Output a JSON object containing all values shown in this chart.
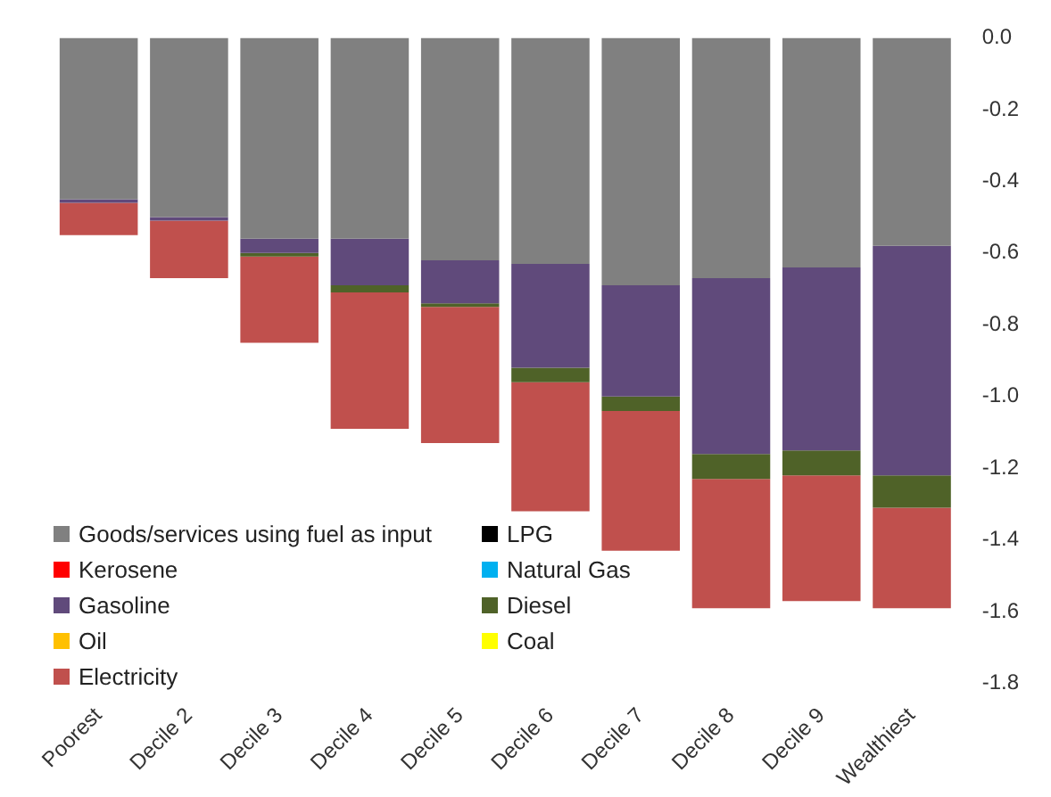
{
  "chart_data": {
    "type": "bar",
    "stacked": true,
    "legend": "bottom left",
    "categories": [
      "Poorest",
      "Decile 2",
      "Decile 3",
      "Decile 4",
      "Decile 5",
      "Decile 6",
      "Decile 7",
      "Decile 8",
      "Decile 9",
      "Wealthiest"
    ],
    "ylim": [
      -1.8,
      0
    ],
    "yticks": [
      {
        "value": 0,
        "label": "0.0"
      },
      {
        "value": -0.2,
        "label": "-0.2"
      },
      {
        "value": -0.4,
        "label": "-0.4"
      },
      {
        "value": -0.6,
        "label": "-0.6"
      },
      {
        "value": -0.8,
        "label": "-0.8"
      },
      {
        "value": -1.0,
        "label": "-1.0"
      },
      {
        "value": -1.2,
        "label": "-1.2"
      },
      {
        "value": -1.4,
        "label": "-1.4"
      },
      {
        "value": -1.6,
        "label": "-1.6"
      },
      {
        "value": -1.8,
        "label": "-1.8"
      }
    ],
    "series": [
      {
        "name": "Goods/services using fuel as input",
        "color": "#808080",
        "values": [
          -0.45,
          -0.5,
          -0.56,
          -0.56,
          -0.62,
          -0.63,
          -0.69,
          -0.67,
          -0.64,
          -0.58
        ]
      },
      {
        "name": "LPG",
        "color": "#000000",
        "values": [
          0,
          0,
          0,
          0,
          0,
          0,
          0,
          0,
          0,
          0
        ]
      },
      {
        "name": "Kerosene",
        "color": "#ff0000",
        "values": [
          0,
          0,
          0,
          0,
          0,
          0,
          0,
          0,
          0,
          0
        ]
      },
      {
        "name": "Natural Gas",
        "color": "#00b0f0",
        "values": [
          0,
          0,
          0,
          0,
          0,
          0,
          0,
          0,
          0,
          0
        ]
      },
      {
        "name": "Gasoline",
        "color": "#604a7b",
        "values": [
          -0.01,
          -0.01,
          -0.04,
          -0.13,
          -0.12,
          -0.29,
          -0.31,
          -0.49,
          -0.51,
          -0.64
        ]
      },
      {
        "name": "Diesel",
        "color": "#4f6228",
        "values": [
          0,
          0,
          -0.01,
          -0.02,
          -0.01,
          -0.04,
          -0.04,
          -0.07,
          -0.07,
          -0.09
        ]
      },
      {
        "name": "Oil",
        "color": "#ffc000",
        "values": [
          0,
          0,
          0,
          0,
          0,
          0,
          0,
          0,
          0,
          0
        ]
      },
      {
        "name": "Coal",
        "color": "#ffff00",
        "values": [
          0,
          0,
          0,
          0,
          0,
          0,
          0,
          0,
          0,
          0
        ]
      },
      {
        "name": "Electricity",
        "color": "#c0504d",
        "values": [
          -0.09,
          -0.16,
          -0.24,
          -0.38,
          -0.38,
          -0.36,
          -0.39,
          -0.36,
          -0.35,
          -0.28
        ]
      }
    ]
  }
}
